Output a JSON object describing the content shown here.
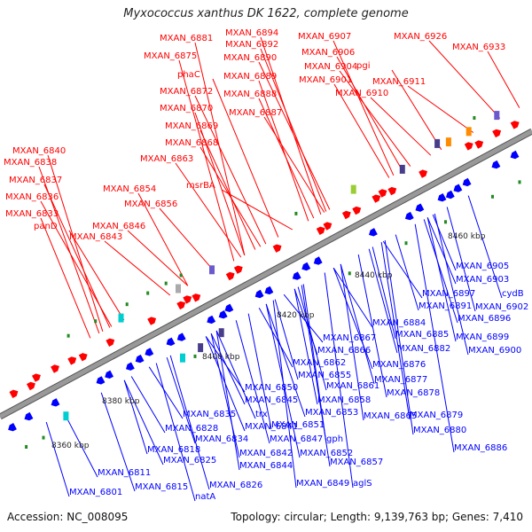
{
  "title": "Myxococcus xanthus DK 1622, complete genome",
  "footer": {
    "accession": "Accession: NC_008095",
    "stats": "Topology: circular; Length: 9,139,763 bp; Genes: 7,410"
  },
  "colors": {
    "forward_gene": "#ff0000",
    "reverse_gene": "#0000ff",
    "backbone": "#999999",
    "rna_tick": "#228b22"
  },
  "scale_labels": [
    "8360 kbp",
    "8380 kbp",
    "8400 kbp",
    "8420 kbp",
    "8440 kbp",
    "8460 kbp"
  ],
  "top_labels": [
    "MXAN_6881",
    "MXAN_6875",
    "MXAN_6894",
    "MXAN_6892",
    "MXAN_6890",
    "MXAN_6889",
    "MXAN_6888",
    "MXAN_6887",
    "phaC",
    "MXAN_6872",
    "MXAN_6870",
    "MXAN_6869",
    "MXAN_6868",
    "MXAN_6863",
    "msrBA",
    "MXAN_6854",
    "MXAN_6856",
    "MXAN_6907",
    "MXAN_6906",
    "MXAN_6904",
    "pgi",
    "MXAN_6901",
    "MXAN_6910",
    "MXAN_6911",
    "MXAN_6926",
    "MXAN_6933",
    "MXAN_6840",
    "MXAN_6838",
    "MXAN_6837",
    "MXAN_6836",
    "MXAN_6833",
    "panD",
    "MXAN_6846",
    "MXAN_6843"
  ],
  "bottom_labels": [
    "MXAN_6905",
    "MXAN_6903",
    "cydB",
    "MXAN_6897",
    "MXAN_6891",
    "MXAN_6902",
    "MXAN_6896",
    "MXAN_6884",
    "MXAN_6885",
    "MXAN_6899",
    "MXAN_6900",
    "MXAN_6867",
    "MXAN_6866",
    "MXAN_6882",
    "MXAN_6862",
    "MXAN_6876",
    "MXAN_6855",
    "MXAN_6861",
    "MXAN_6877",
    "MXAN_6850",
    "MXAN_6858",
    "MXAN_6878",
    "MXAN_6845",
    "MXAN_6853",
    "MXAN_6865",
    "MXAN_6879",
    "MXAN_6835",
    "trx",
    "MXAN_6851",
    "MXAN_6880",
    "MXAN_6828",
    "MXAN_6841",
    "gph",
    "MXAN_6834",
    "MXAN_6847",
    "MXAN_6886",
    "MXAN_6818",
    "MXAN_6842",
    "MXAN_6852",
    "MXAN_6825",
    "MXAN_6844",
    "MXAN_6857",
    "MXAN_6811",
    "MXAN_6826",
    "MXAN_6849",
    "aglS",
    "MXAN_6815",
    "natA",
    "MXAN_6801"
  ]
}
